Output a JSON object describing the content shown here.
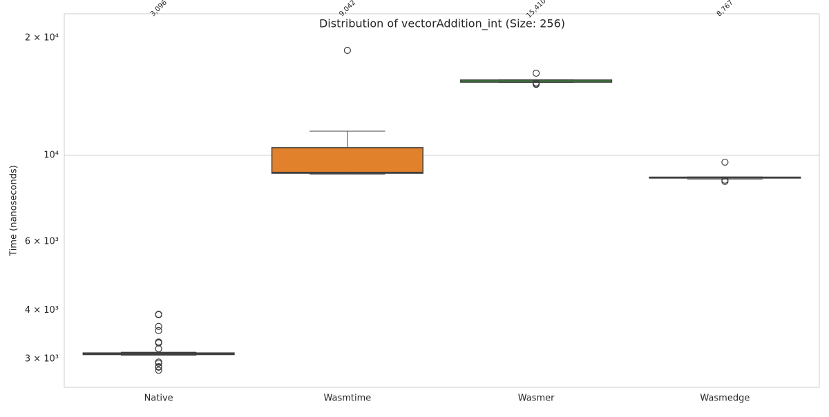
{
  "chart_data": {
    "type": "box",
    "title": "Distribution of vectorAddition_int (Size: 256)",
    "ylabel": "Time (nanoseconds)",
    "log_scale": true,
    "grid": true,
    "categories": [
      "Native",
      "Wasmtime",
      "Wasmer",
      "Wasmedge"
    ],
    "colors": [
      "#3274a1",
      "#e1812c",
      "#3a923a",
      "#c03d3e"
    ],
    "boxes": [
      {
        "whislo": 3070,
        "q1": 3082,
        "med": 3096,
        "q3": 3112,
        "whishi": 3125,
        "med_label": "3,096",
        "fliers": [
          3910,
          3900,
          3640,
          3550,
          3320,
          3310,
          3300,
          3190,
          2950,
          2930,
          2870,
          2860,
          2810
        ]
      },
      {
        "whislo": 8950,
        "q1": 8990,
        "med": 9042,
        "q3": 10460,
        "whishi": 11530,
        "med_label": "9,042",
        "fliers": [
          18580
        ]
      },
      {
        "whislo": 15380,
        "q1": 15400,
        "med": 15410,
        "q3": 15600,
        "whishi": 15620,
        "med_label": "15,410",
        "fliers": [
          16240,
          15350,
          15250,
          15200
        ]
      },
      {
        "whislo": 8690,
        "q1": 8740,
        "med": 8767,
        "q3": 8790,
        "whishi": 8800,
        "med_label": "8,767",
        "fliers": [
          9600,
          8635,
          8570
        ]
      }
    ],
    "ylim": [
      2540,
      23060
    ],
    "yticks": [
      {
        "value": 10000,
        "label": "10⁴"
      }
    ],
    "yminorticks": [
      {
        "value": 3000,
        "label": "3 × 10³"
      },
      {
        "value": 4000,
        "label": "4 × 10³"
      },
      {
        "value": 6000,
        "label": "6 × 10³"
      },
      {
        "value": 20000,
        "label": "2 × 10⁴"
      }
    ]
  }
}
